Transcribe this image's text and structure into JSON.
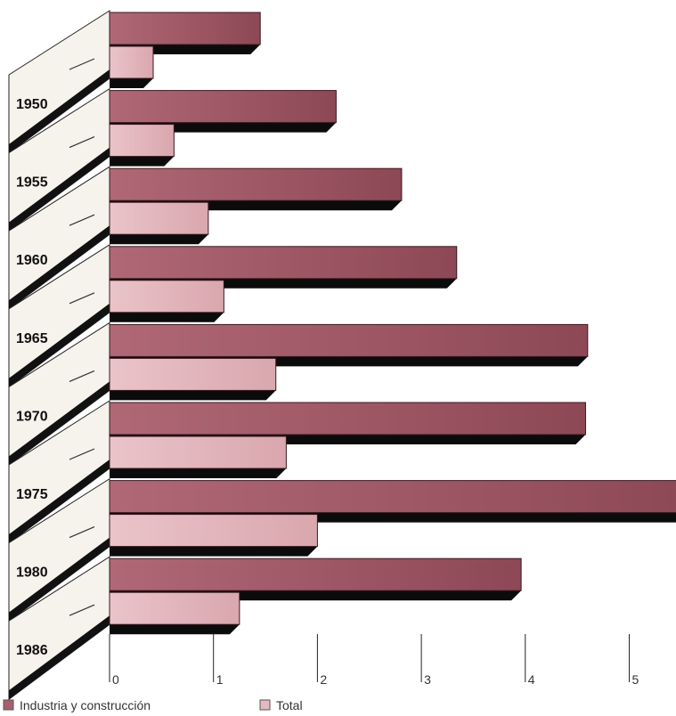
{
  "chart_data": {
    "type": "bar",
    "orientation": "horizontal",
    "categories": [
      "1950",
      "1955",
      "1960",
      "1965",
      "1970",
      "1975",
      "1980",
      "1986"
    ],
    "series": [
      {
        "name": "Industria y construcción",
        "values": [
          1.45,
          2.18,
          2.81,
          3.34,
          4.6,
          4.58,
          5.6,
          3.96
        ],
        "color": "#a85f6d"
      },
      {
        "name": "Total",
        "values": [
          0.42,
          0.62,
          0.95,
          1.1,
          1.6,
          1.7,
          2.0,
          1.25
        ],
        "color": "#e4b9bf"
      }
    ],
    "x_ticks": [
      "0",
      "1",
      "2",
      "3",
      "4",
      "5"
    ],
    "xlim": [
      0,
      5.45
    ],
    "grid": false,
    "legend_position": "bottom-left"
  }
}
